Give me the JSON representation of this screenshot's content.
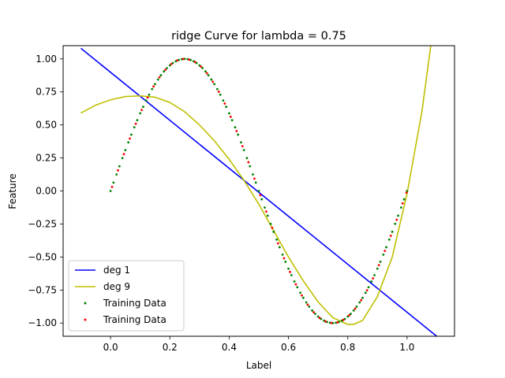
{
  "chart_data": {
    "type": "line",
    "title": "ridge Curve for lambda = 0.75",
    "xlabel": "Label",
    "ylabel": "Feature",
    "xlim": [
      -0.16,
      1.16
    ],
    "ylim": [
      -1.1,
      1.1
    ],
    "xticks": [
      0.0,
      0.2,
      0.4,
      0.6,
      0.8,
      1.0
    ],
    "xtick_labels": [
      "0.0",
      "0.2",
      "0.4",
      "0.6",
      "0.8",
      "1.0"
    ],
    "yticks": [
      -1.0,
      -0.75,
      -0.5,
      -0.25,
      0.0,
      0.25,
      0.5,
      0.75,
      1.0
    ],
    "ytick_labels": [
      "−1.00",
      "−0.75",
      "−0.50",
      "−0.25",
      "0.00",
      "0.25",
      "0.50",
      "0.75",
      "1.00"
    ],
    "grid": false,
    "legend_position": "bottom-left",
    "series": [
      {
        "name": "deg 1",
        "kind": "line",
        "color": "#0000ff",
        "x": [
          -0.1,
          1.1
        ],
        "y": [
          1.08,
          -1.1
        ]
      },
      {
        "name": "deg 9",
        "kind": "line",
        "color": "#bfbf00",
        "x": [
          -0.1,
          -0.05,
          0.0,
          0.05,
          0.1,
          0.15,
          0.2,
          0.25,
          0.3,
          0.35,
          0.4,
          0.45,
          0.5,
          0.55,
          0.6,
          0.65,
          0.7,
          0.75,
          0.8,
          0.82,
          0.85,
          0.9,
          0.95,
          1.0,
          1.05,
          1.08
        ],
        "y": [
          0.59,
          0.65,
          0.69,
          0.715,
          0.72,
          0.71,
          0.67,
          0.6,
          0.5,
          0.38,
          0.24,
          0.08,
          -0.1,
          -0.3,
          -0.5,
          -0.68,
          -0.84,
          -0.96,
          -1.01,
          -1.01,
          -0.98,
          -0.8,
          -0.5,
          -0.02,
          0.6,
          1.1
        ]
      },
      {
        "name": "Training Data",
        "kind": "scatter",
        "color": "#008000",
        "x": [
          0.0,
          0.01,
          0.02,
          0.03,
          0.04,
          0.05,
          0.06,
          0.07,
          0.08,
          0.09,
          0.1,
          0.11,
          0.12,
          0.13,
          0.14,
          0.15,
          0.16,
          0.17,
          0.18,
          0.19,
          0.2,
          0.21,
          0.22,
          0.23,
          0.24,
          0.25,
          0.26,
          0.27,
          0.28,
          0.29,
          0.3,
          0.31,
          0.32,
          0.33,
          0.34,
          0.35,
          0.36,
          0.37,
          0.38,
          0.39,
          0.4,
          0.41,
          0.42,
          0.43,
          0.44,
          0.45,
          0.46,
          0.47,
          0.48,
          0.49,
          0.5,
          0.51,
          0.52,
          0.53,
          0.54,
          0.55,
          0.56,
          0.57,
          0.58,
          0.59,
          0.6,
          0.61,
          0.62,
          0.63,
          0.64,
          0.65,
          0.66,
          0.67,
          0.68,
          0.69,
          0.7,
          0.71,
          0.72,
          0.73,
          0.74,
          0.75,
          0.76,
          0.77,
          0.78,
          0.79,
          0.8,
          0.81,
          0.82,
          0.83,
          0.84,
          0.85,
          0.86,
          0.87,
          0.88,
          0.89,
          0.9,
          0.91,
          0.92,
          0.93,
          0.94,
          0.95,
          0.96,
          0.97,
          0.98,
          0.99,
          1.0
        ],
        "y": [
          0.0,
          0.063,
          0.125,
          0.187,
          0.249,
          0.309,
          0.368,
          0.426,
          0.482,
          0.536,
          0.588,
          0.637,
          0.685,
          0.729,
          0.771,
          0.809,
          0.844,
          0.876,
          0.905,
          0.93,
          0.951,
          0.969,
          0.982,
          0.992,
          0.998,
          1.0,
          0.998,
          0.992,
          0.982,
          0.969,
          0.951,
          0.93,
          0.905,
          0.876,
          0.844,
          0.809,
          0.771,
          0.729,
          0.685,
          0.637,
          0.588,
          0.536,
          0.482,
          0.426,
          0.368,
          0.309,
          0.249,
          0.187,
          0.125,
          0.063,
          0.0,
          -0.063,
          -0.125,
          -0.187,
          -0.249,
          -0.309,
          -0.368,
          -0.426,
          -0.482,
          -0.536,
          -0.588,
          -0.637,
          -0.685,
          -0.729,
          -0.771,
          -0.809,
          -0.844,
          -0.876,
          -0.905,
          -0.93,
          -0.951,
          -0.969,
          -0.982,
          -0.992,
          -0.998,
          -1.0,
          -0.998,
          -0.992,
          -0.982,
          -0.969,
          -0.951,
          -0.93,
          -0.905,
          -0.876,
          -0.844,
          -0.809,
          -0.771,
          -0.729,
          -0.685,
          -0.637,
          -0.588,
          -0.536,
          -0.482,
          -0.426,
          -0.368,
          -0.309,
          -0.249,
          -0.187,
          -0.125,
          -0.063,
          0.0
        ]
      },
      {
        "name": "Training Data",
        "kind": "scatter",
        "color": "#ff0000",
        "x": [
          0.005,
          0.025,
          0.045,
          0.065,
          0.085,
          0.105,
          0.125,
          0.145,
          0.165,
          0.185,
          0.205,
          0.225,
          0.245,
          0.265,
          0.285,
          0.305,
          0.325,
          0.345,
          0.365,
          0.385,
          0.405,
          0.425,
          0.445,
          0.465,
          0.485,
          0.505,
          0.525,
          0.545,
          0.565,
          0.585,
          0.605,
          0.625,
          0.645,
          0.665,
          0.685,
          0.705,
          0.725,
          0.745,
          0.765,
          0.785,
          0.805,
          0.825,
          0.845,
          0.865,
          0.885,
          0.905,
          0.925,
          0.945,
          0.965,
          0.985,
          0.998
        ],
        "y": [
          0.031,
          0.156,
          0.279,
          0.397,
          0.509,
          0.613,
          0.707,
          0.791,
          0.861,
          0.918,
          0.961,
          0.988,
          0.999,
          0.995,
          0.976,
          0.941,
          0.891,
          0.827,
          0.752,
          0.662,
          0.562,
          0.454,
          0.339,
          0.218,
          0.094,
          -0.031,
          -0.156,
          -0.279,
          -0.397,
          -0.509,
          -0.613,
          -0.707,
          -0.791,
          -0.861,
          -0.918,
          -0.961,
          -0.988,
          -0.999,
          -0.995,
          -0.976,
          -0.941,
          -0.891,
          -0.827,
          -0.752,
          -0.662,
          -0.562,
          -0.454,
          -0.339,
          -0.218,
          -0.094,
          -0.013
        ]
      }
    ]
  }
}
